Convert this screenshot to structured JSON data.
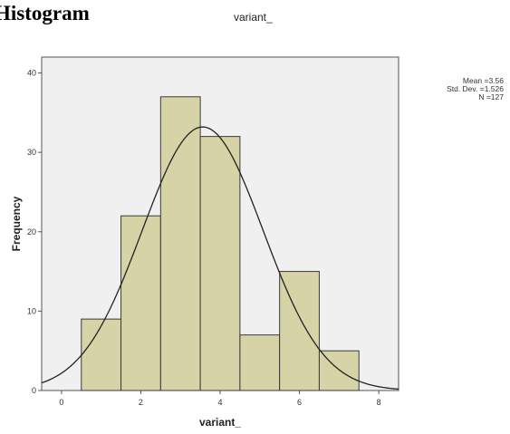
{
  "heading": "Histogram",
  "chart_data": {
    "type": "bar",
    "title": "variant_",
    "xlabel": "variant_",
    "ylabel": "Frequency",
    "xlim": [
      -0.5,
      8.5
    ],
    "ylim": [
      0,
      42
    ],
    "x_ticks": [
      0,
      2,
      4,
      6,
      8
    ],
    "y_ticks": [
      0,
      10,
      20,
      30,
      40
    ],
    "bin_width": 1,
    "bins": [
      {
        "start": 0.5,
        "end": 1.5,
        "count": 9
      },
      {
        "start": 1.5,
        "end": 2.5,
        "count": 22
      },
      {
        "start": 2.5,
        "end": 3.5,
        "count": 37
      },
      {
        "start": 3.5,
        "end": 4.5,
        "count": 32
      },
      {
        "start": 4.5,
        "end": 5.5,
        "count": 7
      },
      {
        "start": 5.5,
        "end": 6.5,
        "count": 15
      },
      {
        "start": 6.5,
        "end": 7.5,
        "count": 5
      }
    ],
    "normal_curve": {
      "mean": 3.56,
      "std_dev": 1.526,
      "n": 127
    },
    "stats_text": [
      "Mean =3.56",
      "Std. Dev. =1.526",
      "N =127"
    ],
    "grid": false,
    "colors": {
      "bar_fill": "#d6d3a6",
      "bar_stroke": "#3a3a3a",
      "plot_bg": "#f0f0f0",
      "curve": "#222222"
    }
  }
}
